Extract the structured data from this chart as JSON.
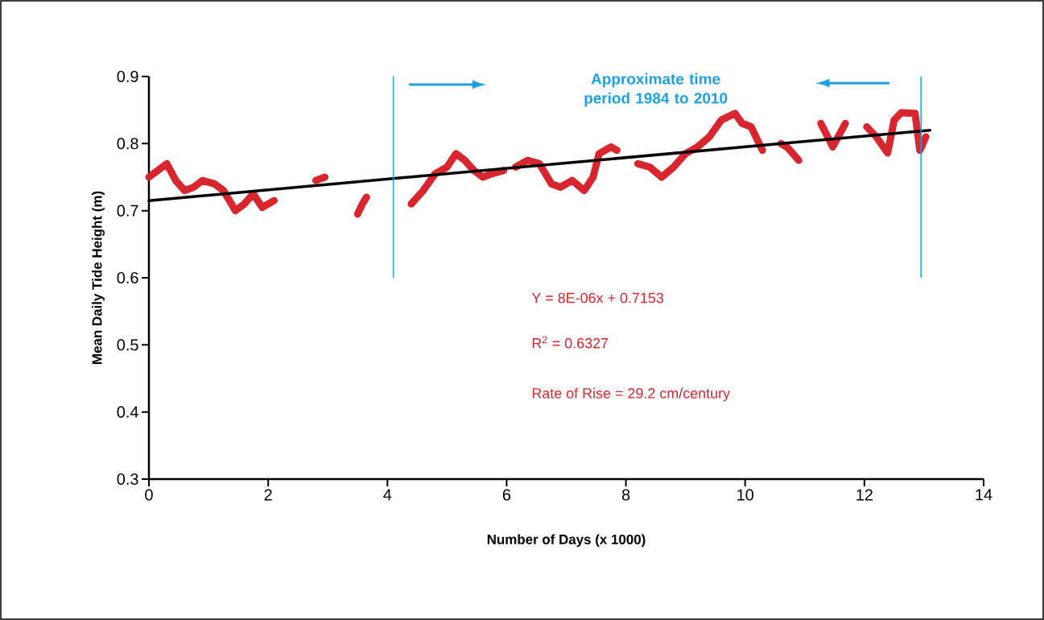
{
  "chart_data": {
    "type": "line",
    "xlabel": "Number of Days (x 1000)",
    "ylabel": "Mean Daily Tide Height (m)",
    "xlim": [
      0,
      14
    ],
    "ylim": [
      0.3,
      0.9
    ],
    "xticks": [
      0,
      2,
      4,
      6,
      8,
      10,
      12,
      14
    ],
    "yticks": [
      0.3,
      0.4,
      0.5,
      0.6,
      0.7,
      0.8,
      0.9
    ],
    "grid": false,
    "marker": "none",
    "line_style": "solid",
    "series": [
      {
        "color": "#d7262e",
        "x": [
          0,
          0.15,
          0.3,
          0.45,
          0.6,
          0.75,
          0.9,
          1.1,
          1.25,
          1.45,
          1.6,
          1.75,
          1.9,
          2.1,
          2.4,
          2.8,
          2.95,
          3.2,
          3.5,
          3.58,
          3.65,
          4.0,
          4.4,
          4.6,
          4.8,
          5.0,
          5.15,
          5.3,
          5.45,
          5.6,
          5.75,
          5.95,
          6.05,
          6.15,
          6.35,
          6.55,
          6.75,
          6.9,
          7.1,
          7.3,
          7.45,
          7.55,
          7.75,
          7.85,
          8.0,
          8.2,
          8.4,
          8.6,
          8.8,
          9.0,
          9.2,
          9.4,
          9.6,
          9.83,
          9.95,
          10.1,
          10.29,
          10.5,
          10.6,
          10.7,
          10.8,
          10.9,
          11.1,
          11.27,
          11.47,
          11.68,
          11.9,
          12.04,
          12.2,
          12.39,
          12.5,
          12.62,
          12.85,
          12.93,
          13.03
        ],
        "values": [
          0.75,
          0.76,
          0.77,
          0.745,
          0.73,
          0.735,
          0.745,
          0.74,
          0.73,
          0.7,
          0.71,
          0.725,
          0.705,
          0.715,
          null,
          0.745,
          0.75,
          null,
          0.695,
          0.71,
          0.72,
          null,
          0.71,
          0.73,
          0.755,
          0.765,
          0.785,
          0.775,
          0.76,
          0.75,
          0.755,
          0.76,
          null,
          0.765,
          0.775,
          0.77,
          0.74,
          0.735,
          0.745,
          0.73,
          0.75,
          0.785,
          0.795,
          0.79,
          null,
          0.77,
          0.765,
          0.75,
          0.765,
          0.785,
          0.795,
          0.81,
          0.835,
          0.845,
          0.83,
          0.825,
          0.79,
          null,
          0.8,
          0.795,
          0.785,
          0.775,
          null,
          0.83,
          0.795,
          0.83,
          null,
          0.825,
          0.81,
          0.786,
          0.835,
          0.846,
          0.845,
          0.79,
          0.81
        ]
      },
      {
        "color": "#000000",
        "x": [
          0,
          13.1
        ],
        "values": [
          0.715,
          0.82
        ]
      }
    ],
    "ref_lines": [
      {
        "axis": "x",
        "value": 4.1,
        "color": "#1ba1e2"
      },
      {
        "axis": "x",
        "value": 12.95,
        "color": "#1ba1e2"
      }
    ],
    "annotations": [
      "Approximate time period 1984 to 2010",
      "Y = 8E-06x + 0.7153",
      "R$^{2}$ = 0.6327",
      "Rate of Rise = 29.2 cm/century"
    ]
  }
}
